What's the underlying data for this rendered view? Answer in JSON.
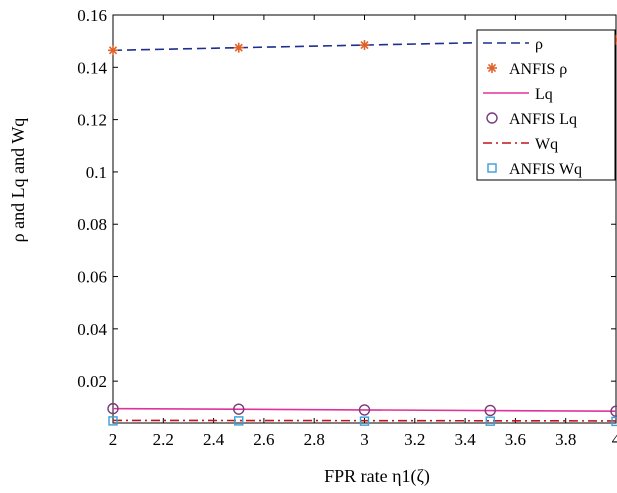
{
  "chart_data": {
    "type": "line",
    "title": "",
    "xlabel": "FPR rate η1(ζ)",
    "ylabel": "ρ and Lq and Wq",
    "xlim": [
      2,
      4
    ],
    "ylim": [
      0.004,
      0.16
    ],
    "xticks": [
      2,
      2.2,
      2.4,
      2.6,
      2.8,
      3,
      3.2,
      3.4,
      3.6,
      3.8,
      4
    ],
    "xtick_labels": [
      "2",
      "2.2",
      "2.4",
      "2.6",
      "2.8",
      "3",
      "3.2",
      "3.4",
      "3.6",
      "3.8",
      "4"
    ],
    "yticks": [
      0.02,
      0.04,
      0.06,
      0.08,
      0.1,
      0.12,
      0.14,
      0.16
    ],
    "ytick_labels": [
      "0.02",
      "0.04",
      "0.06",
      "0.08",
      "0.1",
      "0.12",
      "0.14",
      "0.16"
    ],
    "grid": false,
    "legend_position": "top-right",
    "series": [
      {
        "name": "ρ",
        "style": "dashed",
        "color": "#1f2f8f",
        "x": [
          2,
          4
        ],
        "y": [
          0.1465,
          0.1505
        ]
      },
      {
        "name": "ANFIS ρ",
        "style": "marker",
        "marker": "asterisk",
        "color": "#e0622a",
        "x": [
          2,
          2.5,
          3,
          3.5,
          4
        ],
        "y": [
          0.1465,
          0.1475,
          0.1485,
          0.1495,
          0.1505
        ]
      },
      {
        "name": "Lq",
        "style": "solid",
        "color": "#e0339a",
        "x": [
          2,
          4
        ],
        "y": [
          0.0095,
          0.0085
        ]
      },
      {
        "name": "ANFIS Lq",
        "style": "marker",
        "marker": "circle",
        "color": "#7b3a7b",
        "x": [
          2,
          2.5,
          3,
          3.5,
          4
        ],
        "y": [
          0.0095,
          0.0093,
          0.009,
          0.0088,
          0.0085
        ]
      },
      {
        "name": "Wq",
        "style": "dashdot",
        "color": "#c0151a",
        "x": [
          2,
          4
        ],
        "y": [
          0.005,
          0.0048
        ]
      },
      {
        "name": "ANFIS Wq",
        "style": "marker",
        "marker": "square",
        "color": "#3a9fd6",
        "x": [
          2,
          2.5,
          3,
          3.5,
          4
        ],
        "y": [
          0.0048,
          0.0048,
          0.0047,
          0.0047,
          0.0046
        ]
      }
    ]
  }
}
